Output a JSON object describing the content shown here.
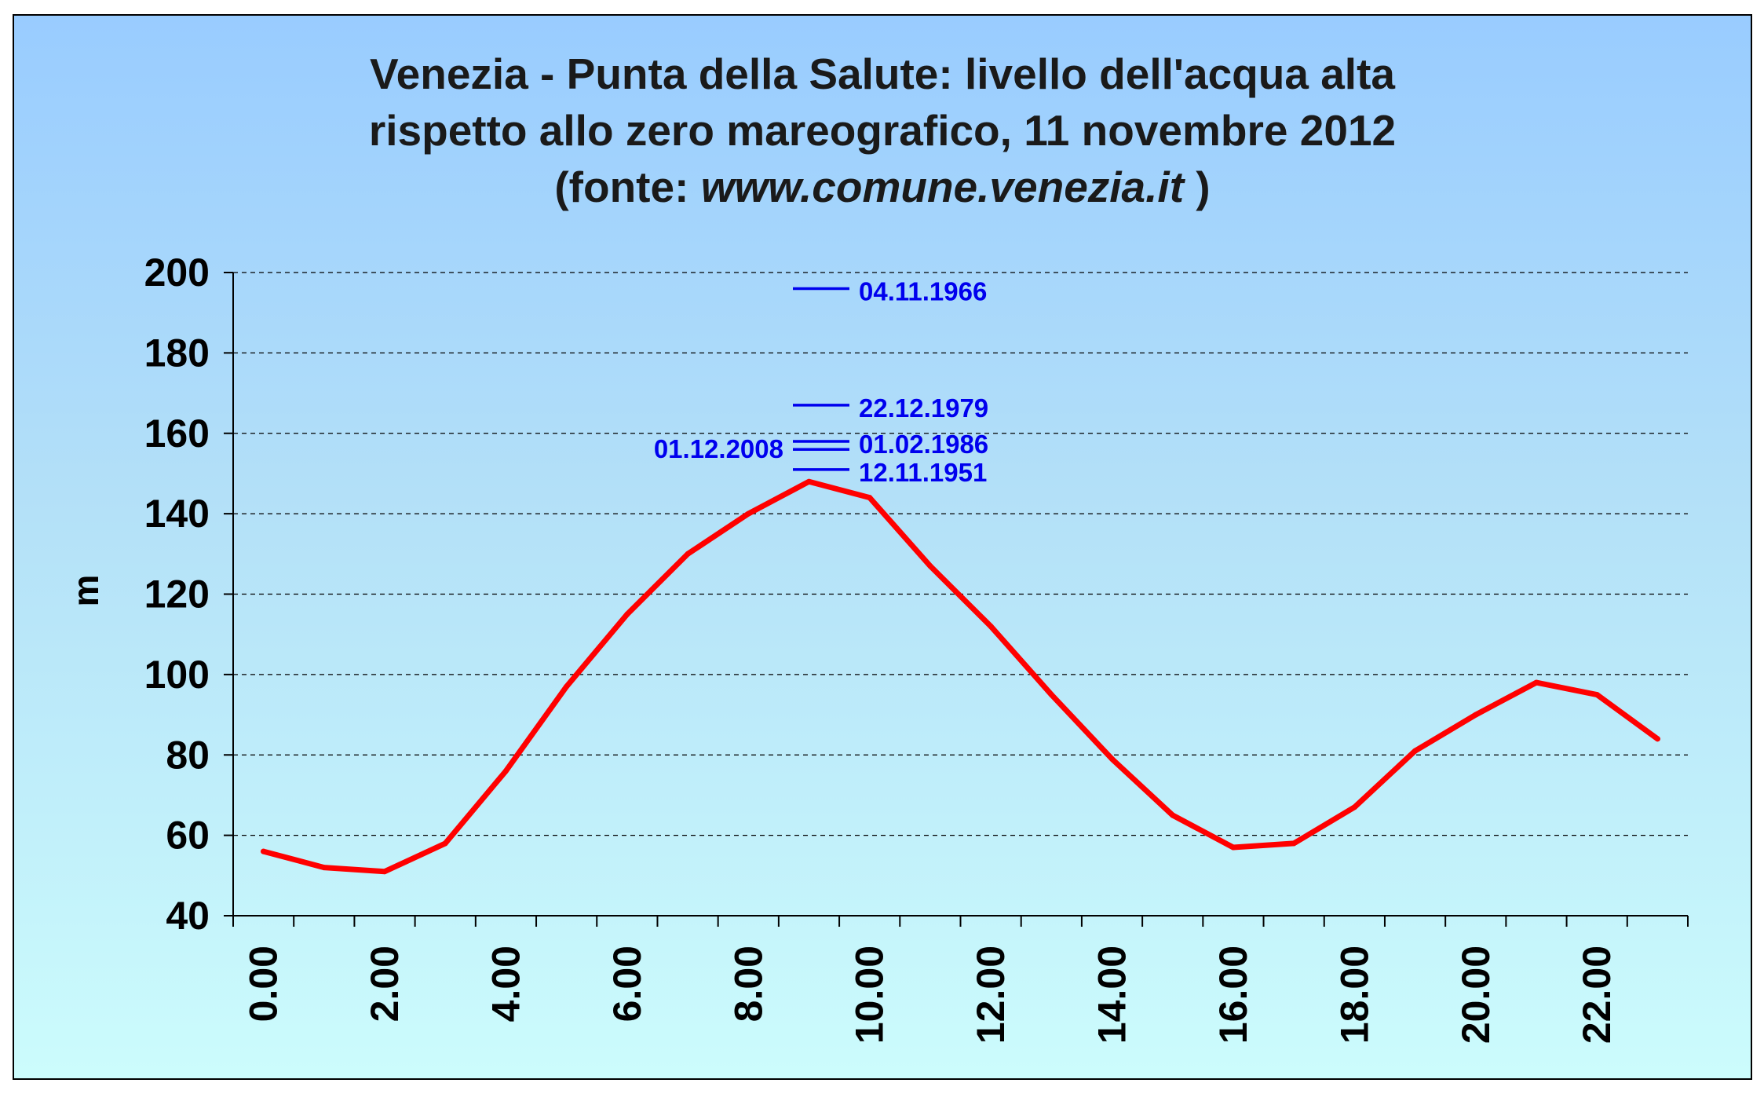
{
  "chart_data": {
    "type": "line",
    "title_lines": [
      "Venezia - Punta della Salute: livello dell'acqua alta",
      "rispetto allo zero mareografico, 11 novembre 2012"
    ],
    "source_prefix": "(fonte: ",
    "source_url": "www.comune.venezia.it",
    "source_suffix": " )",
    "xlabel": "",
    "ylabel": "m",
    "ylim": [
      40,
      200
    ],
    "yticks": [
      40,
      60,
      80,
      100,
      120,
      140,
      160,
      180,
      200
    ],
    "grid": true,
    "x_tick_labels": [
      "0.00",
      "2.00",
      "4.00",
      "6.00",
      "8.00",
      "10.00",
      "12.00",
      "14.00",
      "16.00",
      "18.00",
      "20.00",
      "22.00"
    ],
    "series": [
      {
        "color": "#ff0000",
        "x": [
          0,
          1,
          2,
          3,
          4,
          5,
          6,
          7,
          8,
          9,
          10,
          11,
          12,
          13,
          14,
          15,
          16,
          17,
          18,
          19,
          20,
          21,
          22,
          23
        ],
        "values": [
          56,
          52,
          51,
          58,
          76,
          97,
          115,
          130,
          140,
          148,
          144,
          127,
          112,
          95,
          79,
          65,
          57,
          58,
          67,
          81,
          90,
          98,
          95,
          84
        ]
      }
    ],
    "reference_levels": [
      {
        "label": "04.11.1966",
        "value": 196,
        "label_side": "right"
      },
      {
        "label": "22.12.1979",
        "value": 167,
        "label_side": "right"
      },
      {
        "label": "01.02.1986",
        "value": 158,
        "label_side": "right"
      },
      {
        "label": "01.12.2008",
        "value": 156,
        "label_side": "left"
      },
      {
        "label": "12.11.1951",
        "value": 151,
        "label_side": "right"
      }
    ],
    "reference_color": "#0000ee"
  }
}
